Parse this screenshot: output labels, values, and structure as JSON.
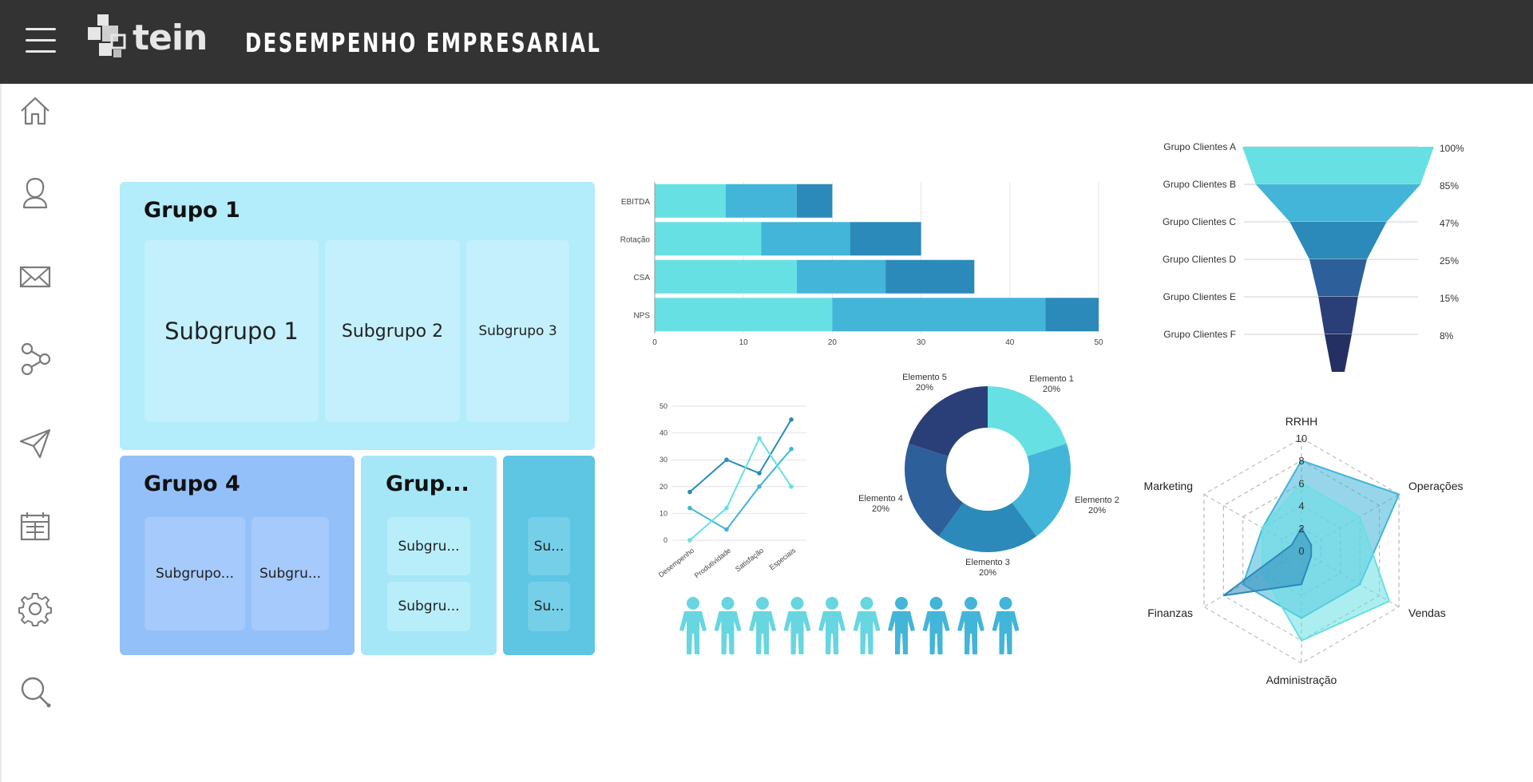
{
  "header": {
    "logo_text": "tein",
    "title": "DESEMPENHO EMPRESARIAL"
  },
  "sidebar": {
    "items": [
      {
        "icon": "home-icon"
      },
      {
        "icon": "user-icon"
      },
      {
        "icon": "mail-icon"
      },
      {
        "icon": "share-icon"
      },
      {
        "icon": "send-icon"
      },
      {
        "icon": "calendar-icon"
      },
      {
        "icon": "settings-icon"
      },
      {
        "icon": "search-icon"
      }
    ]
  },
  "treemap": {
    "group1": {
      "title": "Grupo 1",
      "subs": [
        "Subgrupo 1",
        "Subgrupo 2",
        "Subgrupo 3"
      ]
    },
    "group4": {
      "title": "Grupo 4",
      "subs": [
        "Subgrupo...",
        "Subgru..."
      ]
    },
    "group5": {
      "title": "Grup...",
      "subs": [
        "Subgru...",
        "Subgru..."
      ]
    },
    "group6": {
      "subs": [
        "Su...",
        "Su..."
      ]
    },
    "colors": {
      "group1": "#b3ecfb",
      "group4": "#94c0fa",
      "group5": "#a6e7f7",
      "group6": "#5ec5e3"
    }
  },
  "chart_data": [
    {
      "type": "bar",
      "orientation": "horizontal",
      "stacked": true,
      "categories": [
        "EBITDA",
        "Rotação",
        "CSA",
        "NPS"
      ],
      "series": [
        {
          "values": [
            8,
            12,
            16,
            20
          ]
        },
        {
          "values": [
            8,
            10,
            10,
            24
          ]
        },
        {
          "values": [
            4,
            8,
            10,
            6
          ]
        }
      ],
      "xticks": [
        "0",
        "10",
        "20",
        "30",
        "40",
        "50"
      ],
      "xlim": [
        0,
        50
      ],
      "colors": [
        "#67e0e3",
        "#42b5d8",
        "#2b8ab9"
      ]
    },
    {
      "type": "funnel",
      "categories": [
        "Grupo Clientes A",
        "Grupo Clientes B",
        "Grupo Clientes C",
        "Grupo Clientes D",
        "Grupo Clientes E",
        "Grupo Clientes F"
      ],
      "labels": [
        "100%",
        "85%",
        "47%",
        "25%",
        "15%",
        "8%"
      ],
      "values": [
        100,
        85,
        47,
        25,
        15,
        8
      ],
      "colors": [
        "#67e0e3",
        "#42b5d8",
        "#2b8ab9",
        "#2d5f9a",
        "#2a3e78",
        "#243062"
      ]
    },
    {
      "type": "line",
      "categories": [
        "Desempenho",
        "Produtividade",
        "Satisfação",
        "Especiais"
      ],
      "yticks": [
        "0",
        "10",
        "20",
        "30",
        "40",
        "50"
      ],
      "ylim": [
        0,
        50
      ],
      "series": [
        {
          "values": [
            18,
            30,
            25,
            45
          ]
        },
        {
          "values": [
            12,
            4,
            20,
            34
          ]
        },
        {
          "values": [
            0,
            12,
            38,
            20
          ]
        }
      ],
      "colors": [
        "#2b8ab9",
        "#42b5d8",
        "#67e0e3"
      ]
    },
    {
      "type": "pie",
      "donut": true,
      "labels": [
        {
          "name": "Elemento 1",
          "pct": "20%"
        },
        {
          "name": "Elemento 2",
          "pct": "20%"
        },
        {
          "name": "Elemento 3",
          "pct": "20%"
        },
        {
          "name": "Elemento 4",
          "pct": "20%"
        },
        {
          "name": "Elemento 5",
          "pct": "20%"
        }
      ],
      "values": [
        20,
        20,
        20,
        20,
        20
      ],
      "colors": [
        "#67e0e3",
        "#42b5d8",
        "#2b8ab9",
        "#2d5f9a",
        "#2a3e78"
      ]
    },
    {
      "type": "pictogram",
      "count": 10,
      "highlighted": 6,
      "colors": {
        "light": "#67d6e0",
        "dark": "#42b5d8"
      }
    },
    {
      "type": "radar",
      "axes": [
        "RRHH",
        "Operações",
        "Vendas",
        "Administração",
        "Finanzas",
        "Marketing"
      ],
      "ticks": [
        "0",
        "2",
        "4",
        "6",
        "8",
        "10"
      ],
      "rlim": [
        0,
        10
      ],
      "series": [
        {
          "values": [
            8,
            10,
            6,
            6,
            6,
            4
          ]
        },
        {
          "values": [
            6,
            6,
            9,
            8,
            4,
            4
          ]
        },
        {
          "values": [
            2,
            1,
            1,
            3,
            8,
            1
          ]
        }
      ],
      "colors": [
        "#42b5d8",
        "#67e0e3",
        "#2b8ab9"
      ]
    }
  ]
}
